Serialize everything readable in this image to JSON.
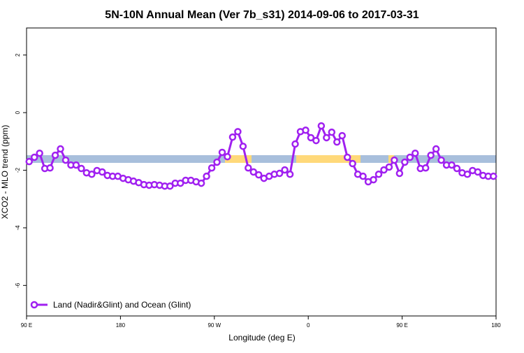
{
  "chart_data": {
    "type": "line",
    "title": "5N-10N Annual Mean (Ver 7b_s31)   2014-09-06 to 2017-03-31",
    "x_label": "Longitude (deg E)",
    "y_label": "XCO2 - MLO trend (ppm)",
    "x": [
      92.5,
      97.5,
      102.5,
      107.5,
      112.5,
      117.5,
      122.5,
      127.5,
      132.5,
      137.5,
      142.5,
      147.5,
      152.5,
      157.5,
      162.5,
      167.5,
      172.5,
      177.5,
      182.5,
      187.5,
      192.5,
      197.5,
      202.5,
      207.5,
      212.5,
      217.5,
      222.5,
      227.5,
      232.5,
      237.5,
      242.5,
      247.5,
      252.5,
      257.5,
      262.5,
      267.5,
      272.5,
      277.5,
      282.5,
      287.5,
      292.5,
      297.5,
      302.5,
      307.5,
      312.5,
      317.5,
      322.5,
      327.5,
      332.5,
      337.5,
      342.5,
      347.5,
      352.5,
      357.5,
      362.5,
      367.5,
      372.5,
      377.5,
      382.5,
      387.5,
      392.5,
      397.5,
      402.5,
      407.5,
      412.5,
      417.5,
      422.5,
      427.5,
      432.5,
      437.5,
      442.5,
      447.5,
      452.5,
      457.5,
      462.5,
      467.5,
      472.5,
      477.5,
      482.5,
      487.5,
      492.5,
      497.5,
      502.5,
      507.5,
      512.5,
      517.5,
      522.5,
      527.5,
      532.5,
      537.5
    ],
    "series": [
      {
        "name": "Land (Nadir&Glint) and Ocean (Glint)",
        "color": "#a020f0",
        "values": [
          -1.7,
          -1.55,
          -1.41,
          -1.94,
          -1.92,
          -1.48,
          -1.26,
          -1.65,
          -1.82,
          -1.82,
          -1.94,
          -2.09,
          -2.14,
          -2.01,
          -2.06,
          -2.18,
          -2.21,
          -2.21,
          -2.28,
          -2.33,
          -2.38,
          -2.43,
          -2.5,
          -2.52,
          -2.5,
          -2.52,
          -2.55,
          -2.55,
          -2.45,
          -2.45,
          -2.35,
          -2.35,
          -2.4,
          -2.45,
          -2.21,
          -1.92,
          -1.72,
          -1.38,
          -1.53,
          -0.85,
          -0.66,
          -1.17,
          -1.92,
          -2.06,
          -2.16,
          -2.28,
          -2.21,
          -2.14,
          -2.11,
          -1.99,
          -2.14,
          -1.09,
          -0.66,
          -0.61,
          -0.87,
          -0.97,
          -0.46,
          -0.87,
          -0.68,
          -1.02,
          -0.8,
          -1.55,
          -1.77,
          -2.14,
          -2.21,
          -2.4,
          -2.33,
          -2.14,
          -1.99,
          -1.89,
          -1.65,
          -2.11,
          -1.72,
          -1.55,
          -1.41,
          -1.94,
          -1.92,
          -1.48,
          -1.26,
          -1.65,
          -1.82,
          -1.82,
          -1.94,
          -2.09,
          -2.14,
          -2.01,
          -2.06,
          -2.18,
          -2.21,
          -2.21
        ]
      }
    ],
    "xlim": [
      90,
      540
    ],
    "xticks": [
      {
        "value": 90,
        "label": "90 E"
      },
      180,
      {
        "value": 270,
        "label": "90 W"
      },
      {
        "value": 360,
        "label": "0"
      },
      {
        "value": 450,
        "label": "90 E"
      },
      {
        "value": 540,
        "label": "180"
      }
    ],
    "ylim": [
      -7.06,
      2.94
    ],
    "yticks": [
      2,
      0,
      -2,
      -4,
      -6
    ],
    "legend_loc": "lower left"
  }
}
